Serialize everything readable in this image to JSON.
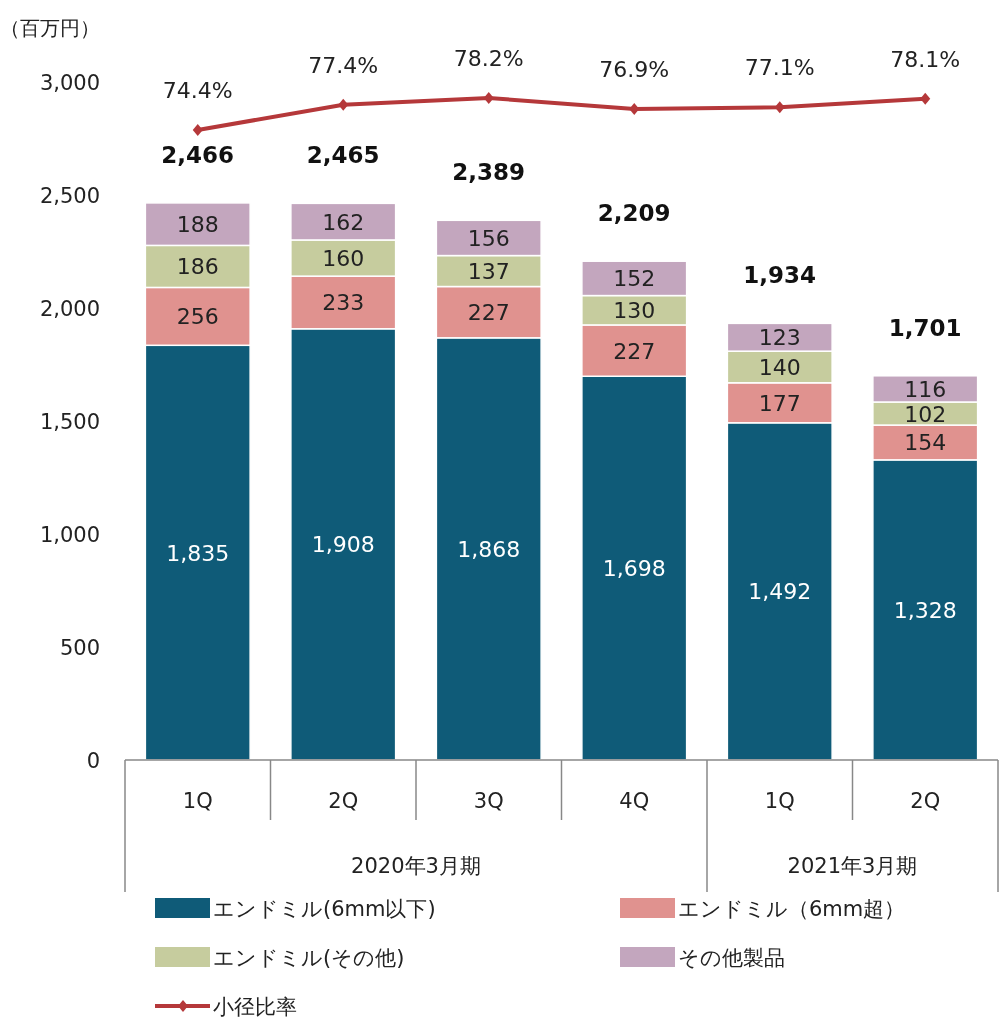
{
  "chart_data": {
    "type": "bar",
    "stacked": true,
    "ylabel": "（百万円）",
    "categories": [
      "1Q",
      "2Q",
      "3Q",
      "4Q",
      "1Q",
      "2Q"
    ],
    "series": [
      {
        "name": "エンドミル(6mm以下)",
        "color": "#0f5b78",
        "values": [
          1835,
          1908,
          1868,
          1698,
          1492,
          1328
        ],
        "value_labels": [
          "1,835",
          "1,908",
          "1,868",
          "1,698",
          "1,492",
          "1,328"
        ]
      },
      {
        "name": "エンドミル（6mm超）",
        "color": "#e0928f",
        "values": [
          256,
          233,
          227,
          227,
          177,
          154
        ]
      },
      {
        "name": "エンドミル(その他)",
        "color": "#c6cc9e",
        "values": [
          186,
          160,
          137,
          130,
          140,
          102
        ]
      },
      {
        "name": "その他製品",
        "color": "#c3a6be",
        "values": [
          188,
          162,
          156,
          152,
          123,
          116
        ]
      },
      {
        "name": "小径比率",
        "type": "line",
        "axis": "y2",
        "color": "#b5383a",
        "marker": "diamond",
        "values": [
          74.4,
          77.4,
          78.2,
          76.9,
          77.1,
          78.1
        ],
        "value_labels": [
          "74.4%",
          "77.4%",
          "78.2%",
          "76.9%",
          "77.1%",
          "78.1%"
        ]
      }
    ],
    "ylim": [
      0,
      3000
    ],
    "yticks": [
      0,
      500,
      {
        "value": 1000,
        "label": "1,000"
      },
      {
        "value": 1500,
        "label": "1,500"
      },
      {
        "value": 2000,
        "label": "2,000"
      },
      {
        "value": 2500,
        "label": "2,500"
      },
      {
        "value": 3000,
        "label": "3,000"
      }
    ],
    "data_labels": true,
    "totals": [
      "2,466",
      "2,465",
      "2,389",
      "2,209",
      "1,934",
      "1,701"
    ],
    "legend": "bottom",
    "annotations": [
      "2020年3月期",
      "2021年3月期"
    ]
  }
}
